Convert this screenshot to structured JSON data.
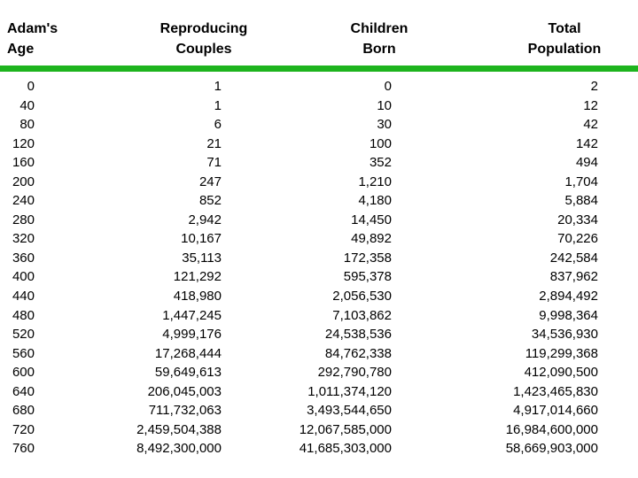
{
  "colors": {
    "background": "#ffffff",
    "text": "#000000",
    "divider_green": "#1eb41e"
  },
  "chart_data": {
    "type": "table",
    "title": "",
    "columns": [
      {
        "line1": "Adam's",
        "line2": "Age"
      },
      {
        "line1": "Reproducing",
        "line2": "Couples"
      },
      {
        "line1": "Children",
        "line2": "Born"
      },
      {
        "line1": "Total",
        "line2": "Population"
      }
    ],
    "rows": [
      [
        "0",
        "1",
        "0",
        "2"
      ],
      [
        "40",
        "1",
        "10",
        "12"
      ],
      [
        "80",
        "6",
        "30",
        "42"
      ],
      [
        "120",
        "21",
        "100",
        "142"
      ],
      [
        "160",
        "71",
        "352",
        "494"
      ],
      [
        "200",
        "247",
        "1,210",
        "1,704"
      ],
      [
        "240",
        "852",
        "4,180",
        "5,884"
      ],
      [
        "280",
        "2,942",
        "14,450",
        "20,334"
      ],
      [
        "320",
        "10,167",
        "49,892",
        "70,226"
      ],
      [
        "360",
        "35,113",
        "172,358",
        "242,584"
      ],
      [
        "400",
        "121,292",
        "595,378",
        "837,962"
      ],
      [
        "440",
        "418,980",
        "2,056,530",
        "2,894,492"
      ],
      [
        "480",
        "1,447,245",
        "7,103,862",
        "9,998,364"
      ],
      [
        "520",
        "4,999,176",
        "24,538,536",
        "34,536,930"
      ],
      [
        "560",
        "17,268,444",
        "84,762,338",
        "119,299,368"
      ],
      [
        "600",
        "59,649,613",
        "292,790,780",
        "412,090,500"
      ],
      [
        "640",
        "206,045,003",
        "1,011,374,120",
        "1,423,465,830"
      ],
      [
        "680",
        "711,732,063",
        "3,493,544,650",
        "4,917,014,660"
      ],
      [
        "720",
        "2,459,504,388",
        "12,067,585,000",
        "16,984,600,000"
      ],
      [
        "760",
        "8,492,300,000",
        "41,685,303,000",
        "58,669,903,000"
      ]
    ]
  }
}
